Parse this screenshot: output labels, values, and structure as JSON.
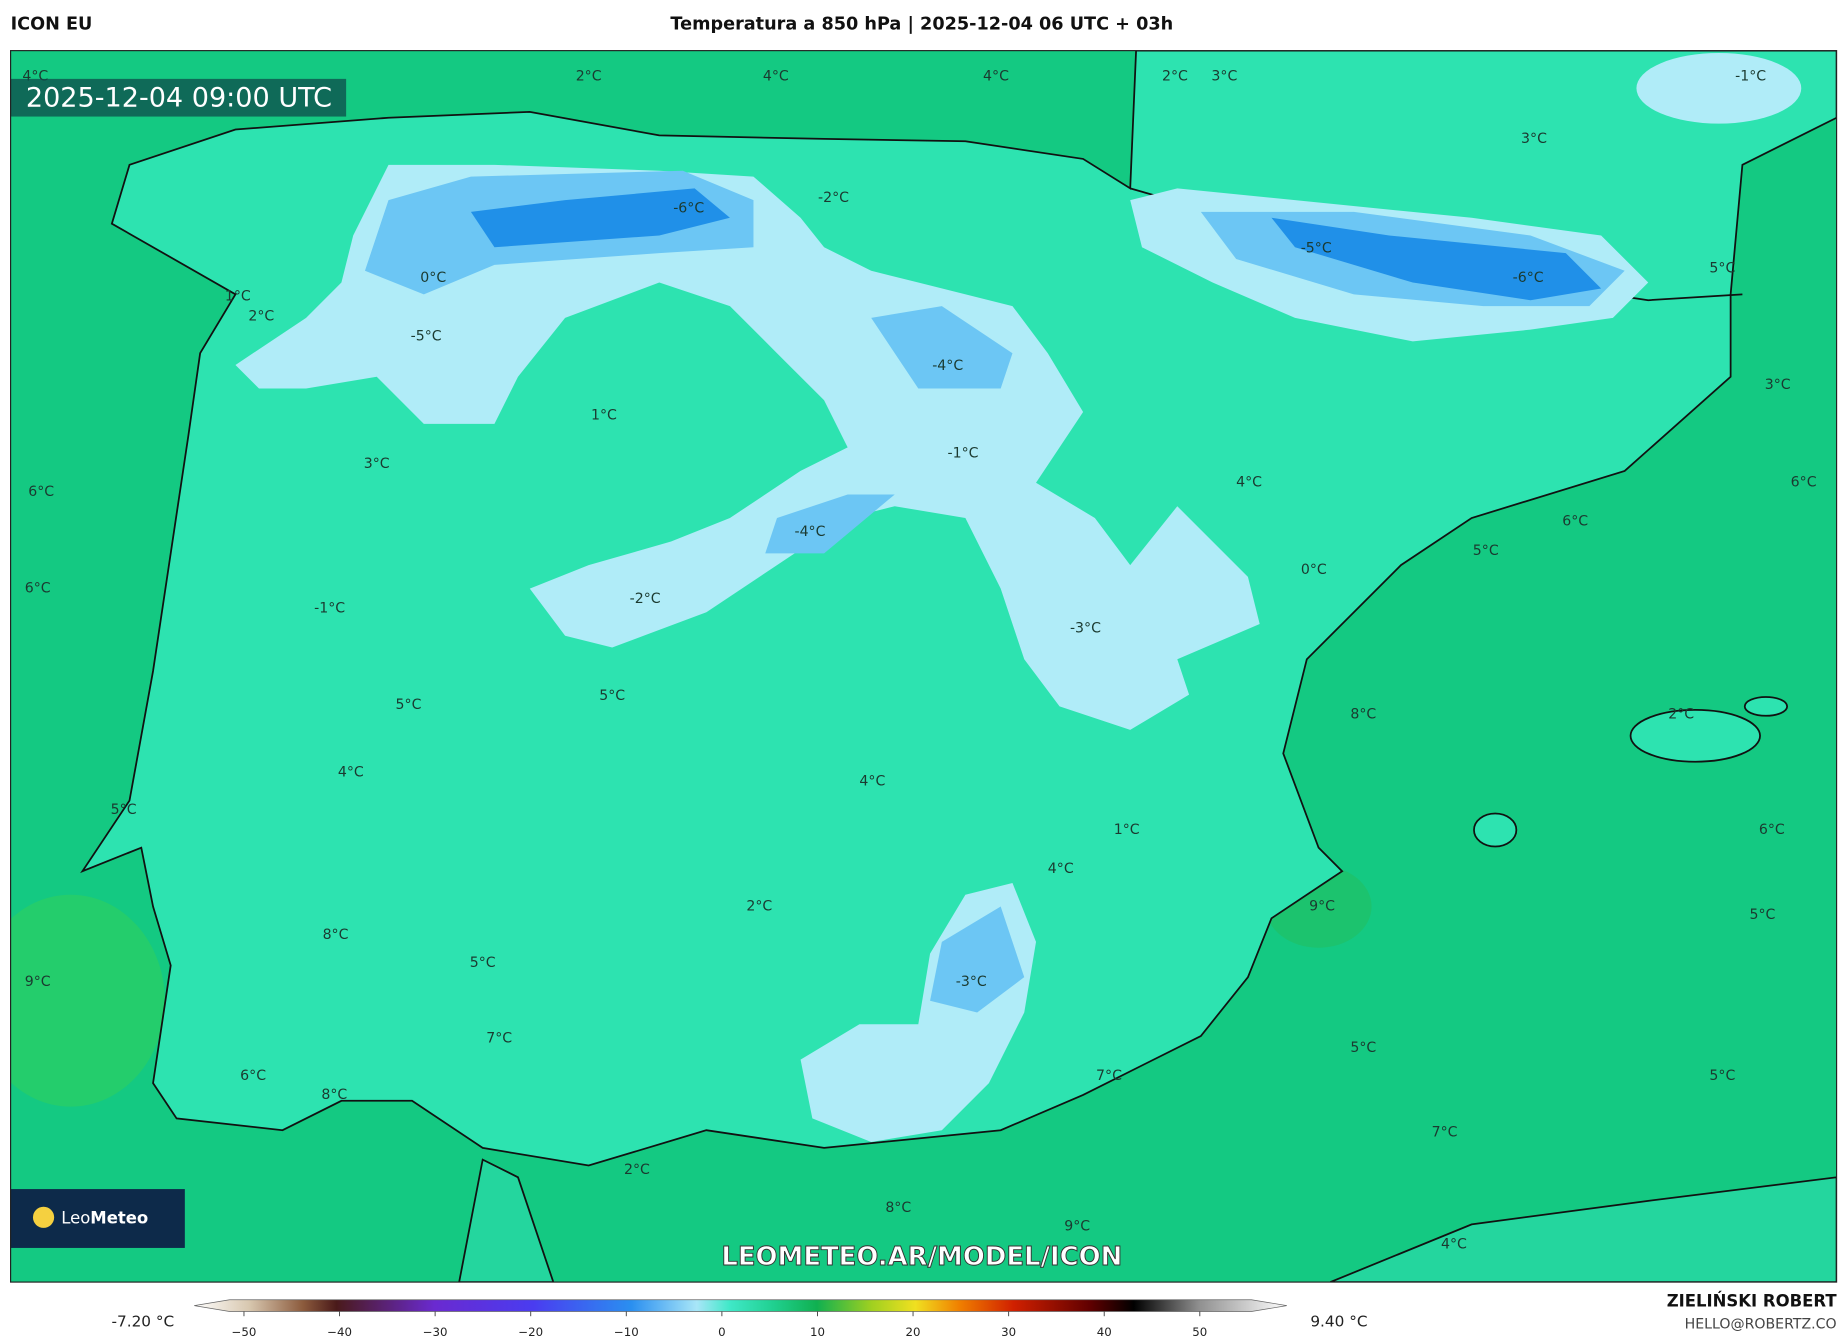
{
  "header": {
    "model": "ICON EU",
    "title": "Temperatura a 850 hPa | 2025-12-04 06 UTC + 03h"
  },
  "map": {
    "valid_time": "2025-12-04 09:00 UTC",
    "labels": [
      "4°C",
      "2°C",
      "4°C",
      "4°C",
      "2°C",
      "3°C",
      "-1°C",
      "3°C",
      "-6°C",
      "-2°C",
      "-5°C",
      "-6°C",
      "0°C",
      "1°C",
      "2°C",
      "5°C",
      "-5°C",
      "-4°C",
      "3°C",
      "1°C",
      "-1°C",
      "3°C",
      "6°C",
      "4°C",
      "6°C",
      "6°C",
      "-4°C",
      "5°C",
      "0°C",
      "6°C",
      "-2°C",
      "-1°C",
      "-3°C",
      "5°C",
      "5°C",
      "8°C",
      "2°C",
      "4°C",
      "4°C",
      "5°C",
      "1°C",
      "6°C",
      "4°C",
      "2°C",
      "9°C",
      "5°C",
      "8°C",
      "5°C",
      "9°C",
      "-3°C",
      "7°C",
      "5°C",
      "6°C",
      "5°C",
      "7°C",
      "8°C",
      "7°C",
      "2°C",
      "8°C",
      "9°C",
      "4°C"
    ],
    "url": "LEOMETEO.AR/MODEL/ICON"
  },
  "logo": {
    "part1": "Leo",
    "part2": "Meteo"
  },
  "colorbar": {
    "min_label": "-7.20 °C",
    "max_label": "9.40 °C",
    "xlim": [
      -55.2,
      59.1
    ],
    "ticks": [
      {
        "value": -50,
        "label": "−50"
      },
      {
        "value": -40,
        "label": "−40"
      },
      {
        "value": -30,
        "label": "−30"
      },
      {
        "value": -20,
        "label": "−20"
      },
      {
        "value": -10,
        "label": "−10"
      },
      0,
      10,
      20,
      30,
      40,
      50
    ]
  },
  "footer": {
    "author": "ZIELIŃSKI ROBERT",
    "email": "HELLO@ROBERTZ.CO"
  }
}
